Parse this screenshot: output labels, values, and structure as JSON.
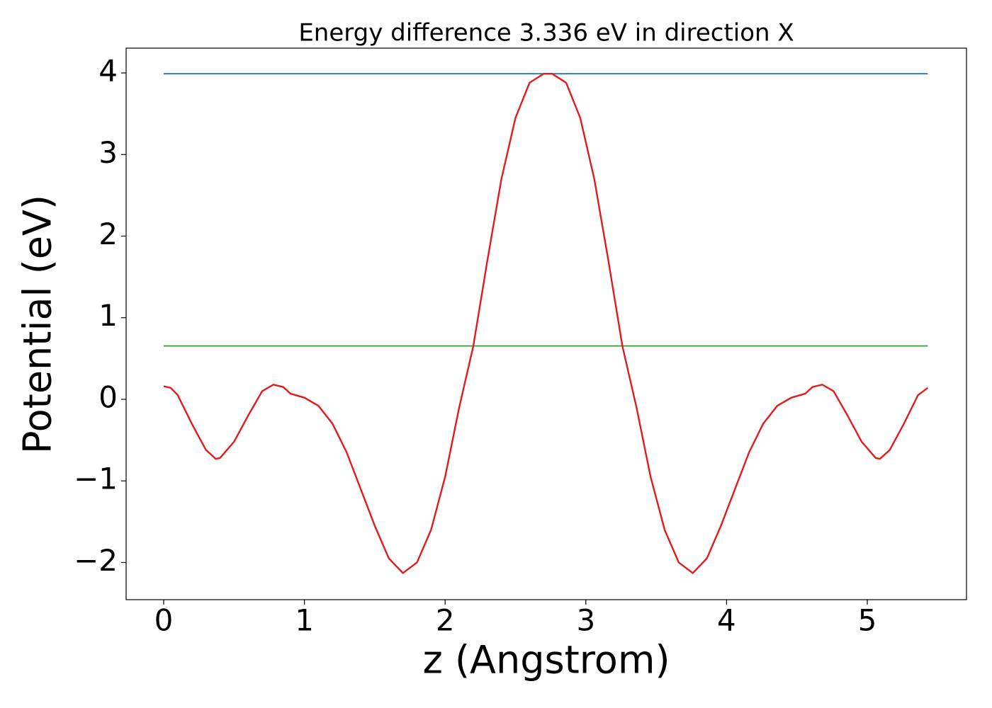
{
  "chart_data": {
    "type": "line",
    "title": "Energy difference 3.336 eV in direction X",
    "x_label": "z (Angstrom)",
    "y_label": "Potential (eV)",
    "xlim": [
      -0.267,
      5.705
    ],
    "ylim": [
      -2.456,
      4.304
    ],
    "xticks": [
      0,
      1,
      2,
      3,
      4,
      5
    ],
    "yticks": [
      {
        "value": -2,
        "label": "−2"
      },
      {
        "value": -1,
        "label": "−1"
      },
      0,
      1,
      2,
      3,
      4
    ],
    "series": [
      {
        "color": "#1f77b4",
        "x": [
          0,
          5.43
        ],
        "values": [
          3.99,
          3.99
        ]
      },
      {
        "color": "#2ca02c",
        "x": [
          0,
          5.43
        ],
        "values": [
          0.654,
          0.654
        ]
      },
      {
        "color": "#e41a1c",
        "x": [
          0,
          0.05,
          0.1,
          0.2,
          0.3,
          0.37,
          0.4,
          0.5,
          0.6,
          0.7,
          0.78,
          0.85,
          0.9,
          1.0,
          1.1,
          1.2,
          1.3,
          1.4,
          1.5,
          1.6,
          1.7,
          1.8,
          1.9,
          2.0,
          2.1,
          2.2,
          2.3,
          2.4,
          2.5,
          2.6,
          2.7,
          2.76,
          2.86,
          2.96,
          3.06,
          3.16,
          3.26,
          3.36,
          3.46,
          3.56,
          3.66,
          3.76,
          3.86,
          3.96,
          4.06,
          4.16,
          4.26,
          4.36,
          4.46,
          4.56,
          4.61,
          4.68,
          4.76,
          4.86,
          4.96,
          5.06,
          5.09,
          5.16,
          5.26,
          5.36,
          5.43
        ],
        "values": [
          0.16,
          0.14,
          0.05,
          -0.3,
          -0.62,
          -0.73,
          -0.72,
          -0.52,
          -0.2,
          0.1,
          0.18,
          0.15,
          0.07,
          0.02,
          -0.08,
          -0.3,
          -0.65,
          -1.1,
          -1.55,
          -1.95,
          -2.13,
          -2.0,
          -1.6,
          -0.95,
          -0.1,
          0.65,
          1.7,
          2.7,
          3.45,
          3.88,
          3.99,
          3.99,
          3.88,
          3.45,
          2.7,
          1.7,
          0.65,
          -0.1,
          -0.95,
          -1.6,
          -2.0,
          -2.13,
          -1.95,
          -1.55,
          -1.1,
          -0.65,
          -0.3,
          -0.08,
          0.02,
          0.07,
          0.15,
          0.18,
          0.1,
          -0.2,
          -0.52,
          -0.72,
          -0.73,
          -0.62,
          -0.3,
          0.05,
          0.14
        ]
      }
    ]
  }
}
